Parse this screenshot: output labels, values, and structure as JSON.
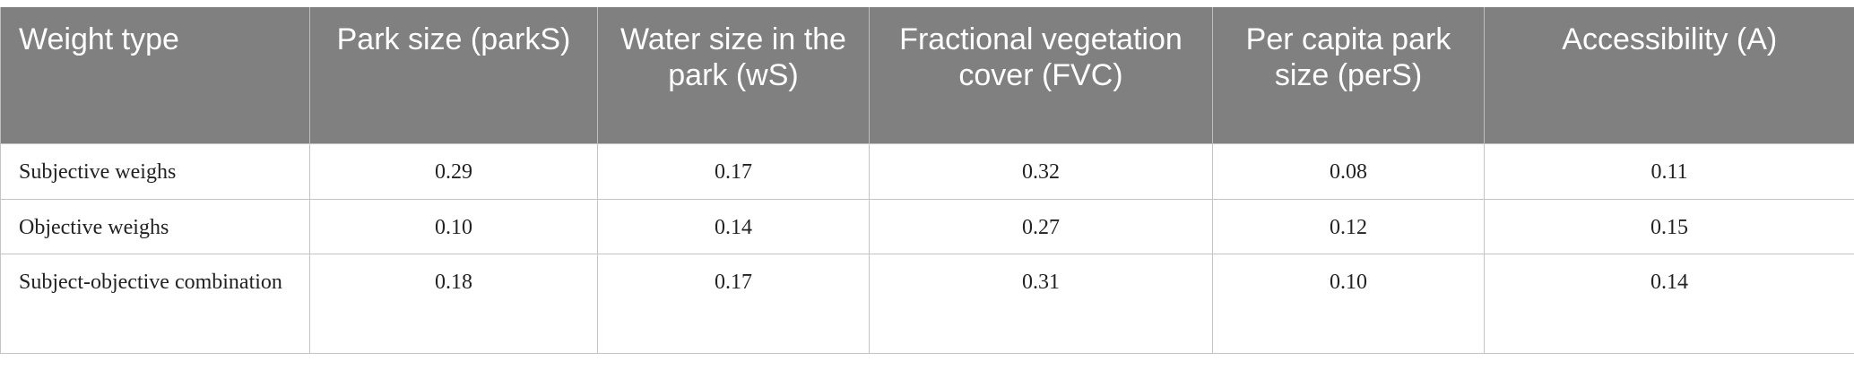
{
  "table": {
    "headers": [
      "Weight type",
      "Park size (parkS)",
      "Water size in the park (wS)",
      "Fractional vegetation cover (FVC)",
      "Per capita park size (perS)",
      "Accessibility (A)"
    ],
    "rows": [
      {
        "label": "Subjective weighs",
        "values": [
          "0.29",
          "0.17",
          "0.32",
          "0.08",
          "0.11"
        ]
      },
      {
        "label": "Objective weighs",
        "values": [
          "0.10",
          "0.14",
          "0.27",
          "0.12",
          "0.15"
        ]
      },
      {
        "label": "Subject-objective combination",
        "values": [
          "0.18",
          "0.17",
          "0.31",
          "0.10",
          "0.14"
        ]
      }
    ]
  }
}
